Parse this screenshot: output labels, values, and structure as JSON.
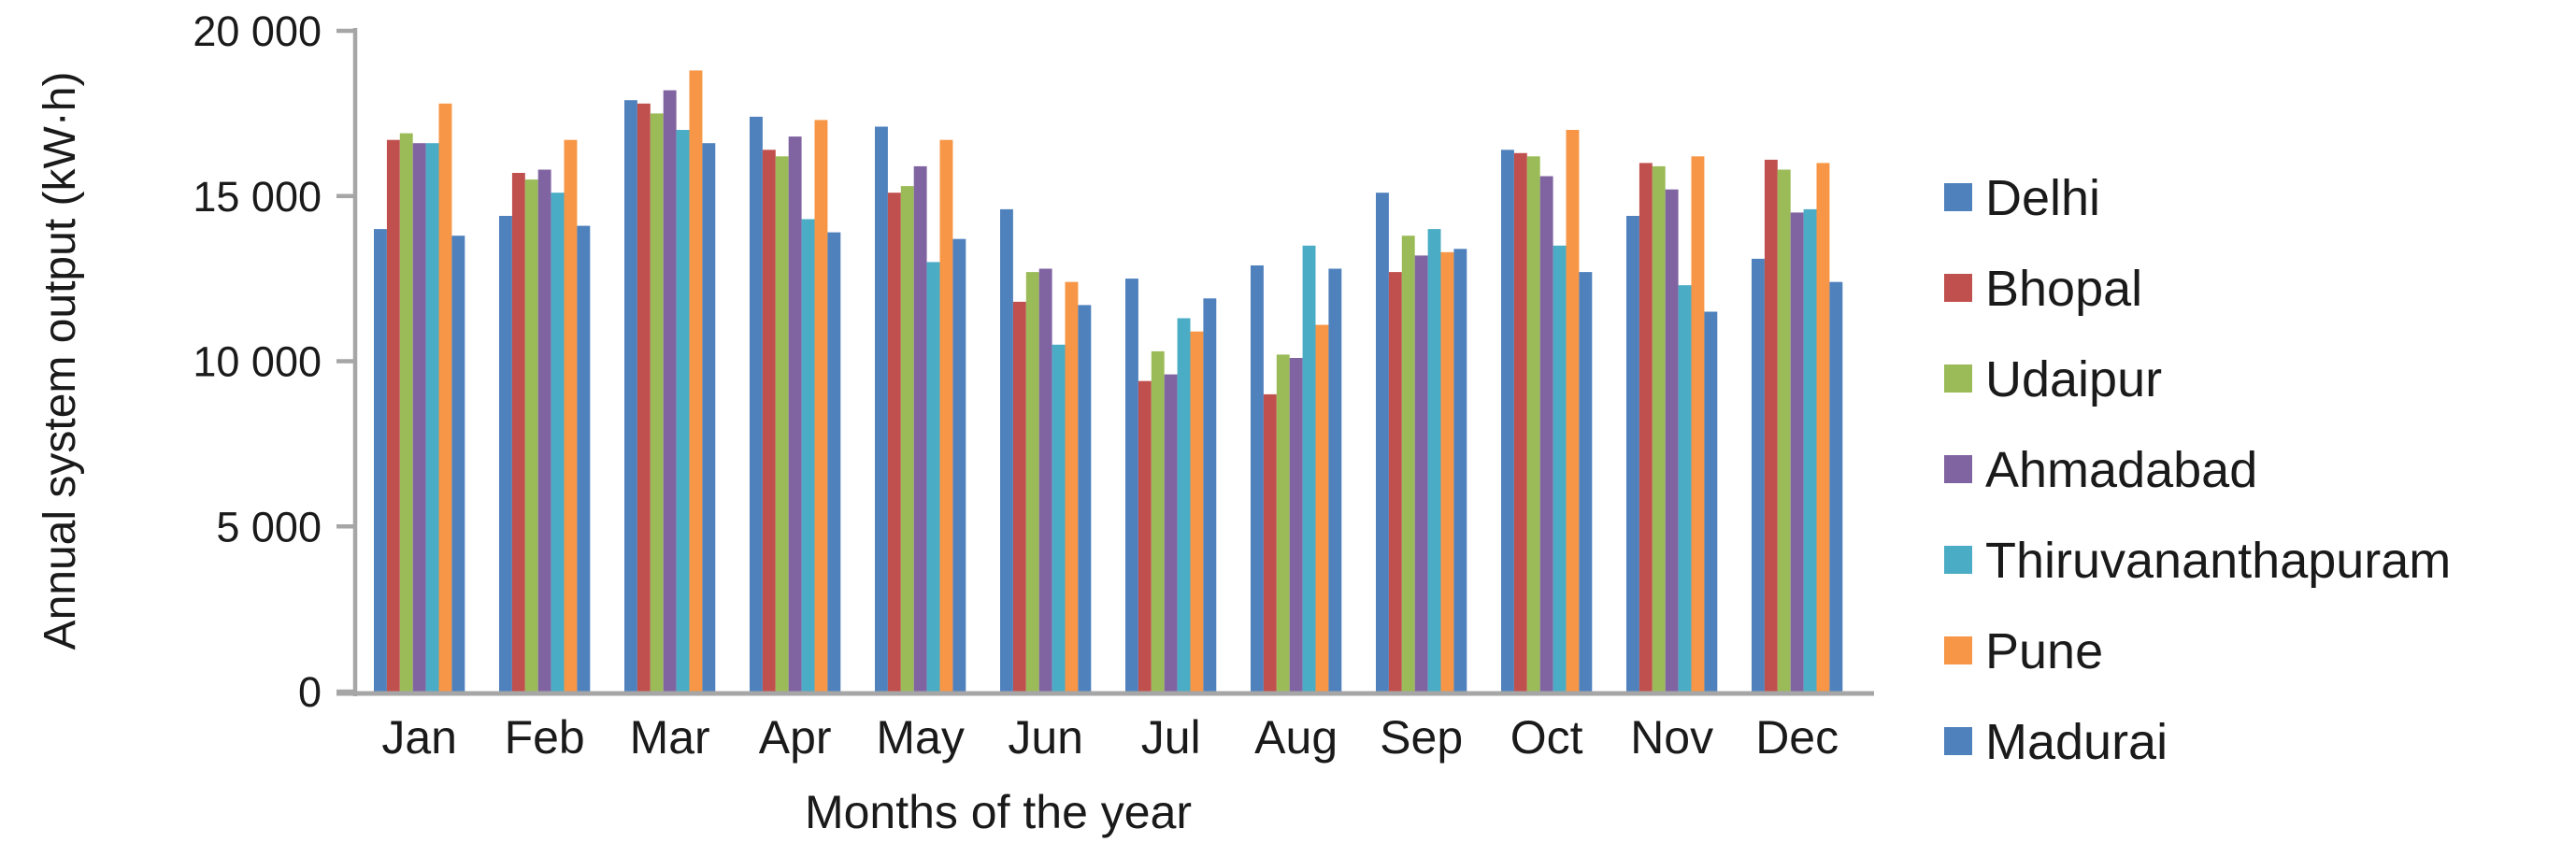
{
  "figure": {
    "background": "#ffffff",
    "axis_color": "#a6a6a6",
    "text_color": "#1a1a1a"
  },
  "chart_data": {
    "type": "bar",
    "title": "",
    "xlabel": "Months of the year",
    "ylabel": "Annual system output (kW·h)",
    "ylim": [
      0,
      20000
    ],
    "ytick_interval": 5000,
    "yticks": [
      0,
      5000,
      10000,
      15000,
      20000
    ],
    "ytick_labels": [
      "0",
      "5 000",
      "10 000",
      "15 000",
      "20 000"
    ],
    "grid": false,
    "legend_position": "right",
    "categories": [
      "Jan",
      "Feb",
      "Mar",
      "Apr",
      "May",
      "Jun",
      "Jul",
      "Aug",
      "Sep",
      "Oct",
      "Nov",
      "Dec"
    ],
    "series": [
      {
        "name": "Delhi",
        "color": "#4F81BD",
        "values": [
          14000,
          14400,
          17900,
          17400,
          17100,
          14600,
          12500,
          12900,
          15100,
          16400,
          14400,
          13100
        ]
      },
      {
        "name": "Bhopal",
        "color": "#C0504D",
        "values": [
          16700,
          15700,
          17800,
          16400,
          15100,
          11800,
          9400,
          9000,
          12700,
          16300,
          16000,
          16100
        ]
      },
      {
        "name": "Udaipur",
        "color": "#9BBB59",
        "values": [
          16900,
          15500,
          17500,
          16200,
          15300,
          12700,
          10300,
          10200,
          13800,
          16200,
          15900,
          15800
        ]
      },
      {
        "name": "Ahmadabad",
        "color": "#8064A2",
        "values": [
          16600,
          15800,
          18200,
          16800,
          15900,
          12800,
          9600,
          10100,
          13200,
          15600,
          15200,
          14500
        ]
      },
      {
        "name": "Thiruvananthapuram",
        "color": "#4BACC6",
        "values": [
          16600,
          15100,
          17000,
          14300,
          13000,
          10500,
          11300,
          13500,
          14000,
          13500,
          12300,
          14600
        ]
      },
      {
        "name": "Pune",
        "color": "#F79646",
        "values": [
          17800,
          16700,
          18800,
          17300,
          16700,
          12400,
          10900,
          11100,
          13300,
          17000,
          16200,
          16000
        ]
      },
      {
        "name": "Madurai",
        "color": "#4F81BD",
        "values": [
          13800,
          14100,
          16600,
          13900,
          13700,
          11700,
          11900,
          12800,
          13400,
          12700,
          11500,
          12400
        ]
      }
    ]
  }
}
